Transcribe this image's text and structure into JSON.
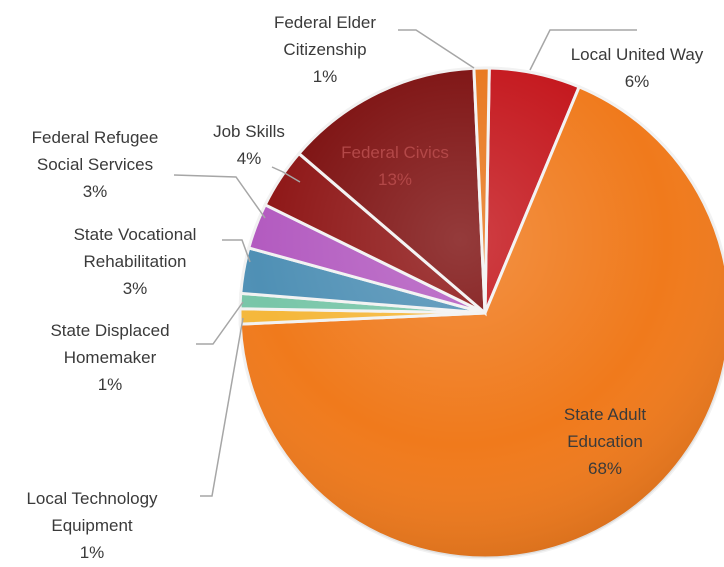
{
  "chart_data": {
    "type": "pie",
    "title": "",
    "slices": [
      {
        "label": "Local United Way",
        "value": 6,
        "value_label": "6%",
        "color": "#c4161c"
      },
      {
        "label": "State Adult Education",
        "value": 68,
        "value_label": "68%",
        "color": "#f07a1c"
      },
      {
        "label": "Local Technology Equipment",
        "value": 1,
        "value_label": "1%",
        "color": "#f5b73a"
      },
      {
        "label": "State Displaced Homemaker",
        "value": 1,
        "value_label": "1%",
        "color": "#78c6a8"
      },
      {
        "label": "State Vocational Rehabilitation",
        "value": 3,
        "value_label": "3%",
        "color": "#4f90b5"
      },
      {
        "label": "Federal Refugee Social Services",
        "value": 3,
        "value_label": "3%",
        "color": "#b35bc0"
      },
      {
        "label": "Job Skills",
        "value": 4,
        "value_label": "4%",
        "color": "#8e1616"
      },
      {
        "label": "Federal Civics",
        "value": 13,
        "value_label": "13%",
        "color": "#7d1010"
      },
      {
        "label": "Federal Elder Citizenship",
        "value": 1,
        "value_label": "1%",
        "color": "#e8761c"
      }
    ]
  }
}
